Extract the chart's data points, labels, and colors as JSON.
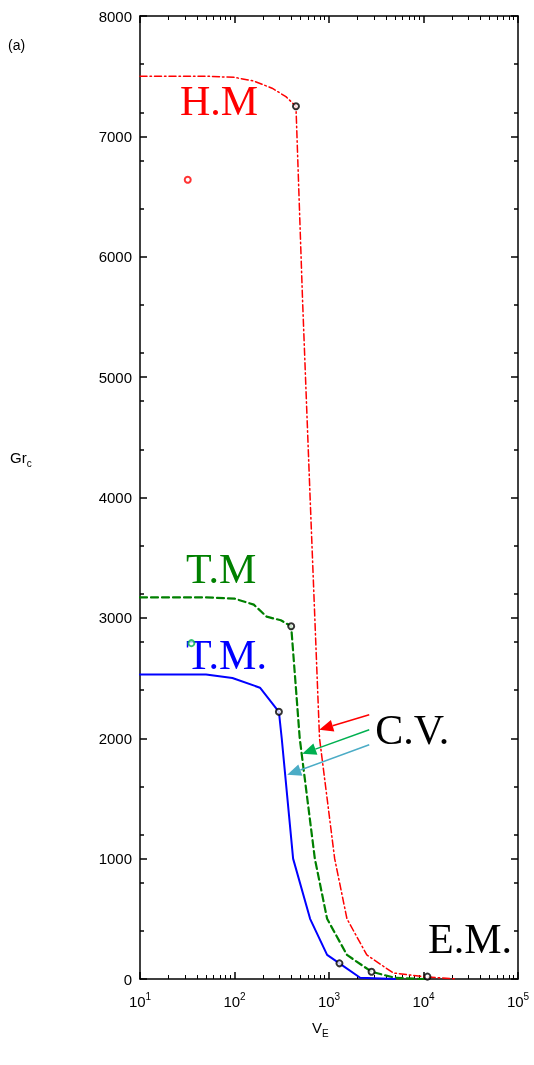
{
  "chart_data": {
    "type": "line",
    "title": "(a)",
    "xlabel": "V$_{E}$",
    "ylabel": "Gr$_{c}$",
    "log": "x",
    "xlim": [
      10,
      100000
    ],
    "xticks": [
      {
        "value": 10,
        "label": "10$^{1}$"
      },
      {
        "value": 100,
        "label": "10$^{2}$"
      },
      {
        "value": 1000,
        "label": "10$^{3}$"
      },
      {
        "value": 10000,
        "label": "10$^{4}$"
      },
      {
        "value": 100000,
        "label": "10$^{5}$"
      }
    ],
    "ylim": [
      0,
      8000
    ],
    "yticks": [
      0,
      1000,
      2000,
      3000,
      4000,
      5000,
      6000,
      7000,
      8000
    ],
    "grid": false,
    "legend": false,
    "marker": "none",
    "series": [
      {
        "name": "H.M",
        "color": "#ff0000",
        "line_style": "dashdot",
        "x": [
          10,
          50,
          100,
          160,
          250,
          350,
          447,
          525,
          631,
          794,
          1148,
          1549,
          2512,
          4786,
          10000,
          22000
        ],
        "values": [
          7500,
          7500,
          7490,
          7460,
          7400,
          7330,
          7250,
          5640,
          4000,
          2000,
          1000,
          500,
          200,
          50,
          20,
          0
        ]
      },
      {
        "name": "T.M",
        "color": "#008000",
        "line_style": "dashed",
        "x": [
          10,
          50,
          100,
          160,
          219,
          309,
          398,
          490,
          708,
          955,
          1549,
          2820,
          5000,
          10000
        ],
        "values": [
          3170,
          3170,
          3160,
          3110,
          3010,
          2980,
          2930,
          2000,
          1000,
          500,
          200,
          60,
          10,
          0
        ]
      },
      {
        "name": "T.M.",
        "color": "#0000ff",
        "line_style": "solid",
        "x": [
          10,
          50,
          95,
          186,
          295,
          316,
          417,
          631,
          955,
          1290,
          2138,
          5000
        ],
        "values": [
          2530,
          2530,
          2500,
          2420,
          2220,
          2000,
          1000,
          500,
          200,
          130,
          10,
          0
        ]
      },
      {
        "type": "scatter",
        "marker": "circle",
        "color": "#000000",
        "x": [
          447,
          398,
          295,
          1290,
          2820,
          11000
        ],
        "values": [
          7250,
          2930,
          2220,
          130,
          60,
          20
        ]
      },
      {
        "type": "scatter",
        "marker": "circle",
        "color": "#ff0000",
        "x": [
          32
        ],
        "values": [
          6640
        ]
      },
      {
        "type": "scatter",
        "marker": "circle",
        "color": "#00b050",
        "x": [
          35
        ],
        "values": [
          2790
        ]
      }
    ],
    "annotations": [
      {
        "text": "C.V.",
        "x": 788,
        "y": 2070
      },
      "E.M."
    ]
  }
}
